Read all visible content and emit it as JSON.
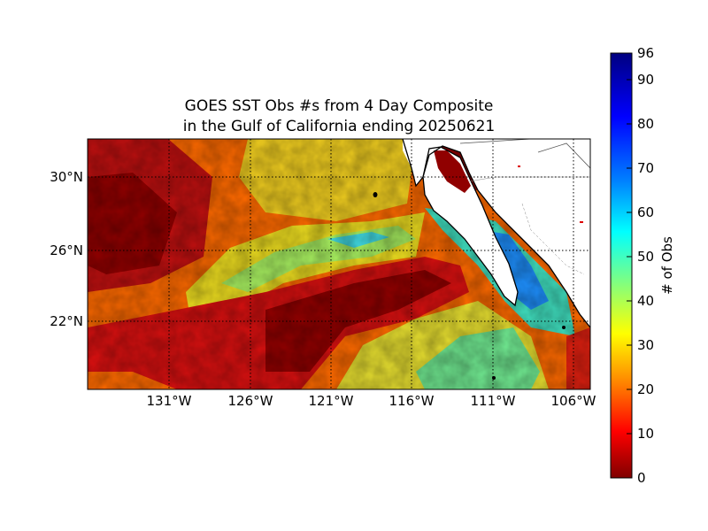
{
  "title_line1": "GOES SST Obs #s from 4 Day Composite",
  "title_line2": "in the Gulf of California ending 20250621",
  "map": {
    "lon_ticks": [
      "131°W",
      "126°W",
      "121°W",
      "116°W",
      "111°W",
      "106°W"
    ],
    "lat_ticks": [
      "30°N",
      "26°N",
      "22°N"
    ]
  },
  "colorbar": {
    "label": "# of Obs",
    "ticks": [
      "96",
      "90",
      "80",
      "70",
      "60",
      "50",
      "40",
      "30",
      "20",
      "10",
      "0"
    ],
    "range": [
      0,
      96
    ],
    "colormap": "jet-reversed"
  },
  "colors": {
    "dark_red": "#800000",
    "red": "#e31a1c",
    "orange": "#ff8c00",
    "yellow": "#f0f020",
    "green_yellow": "#a8ff50",
    "cyan": "#40e0d0",
    "light_blue": "#1e90ff",
    "blue": "#0000ff",
    "navy": "#000080",
    "land": "#ffffff"
  }
}
